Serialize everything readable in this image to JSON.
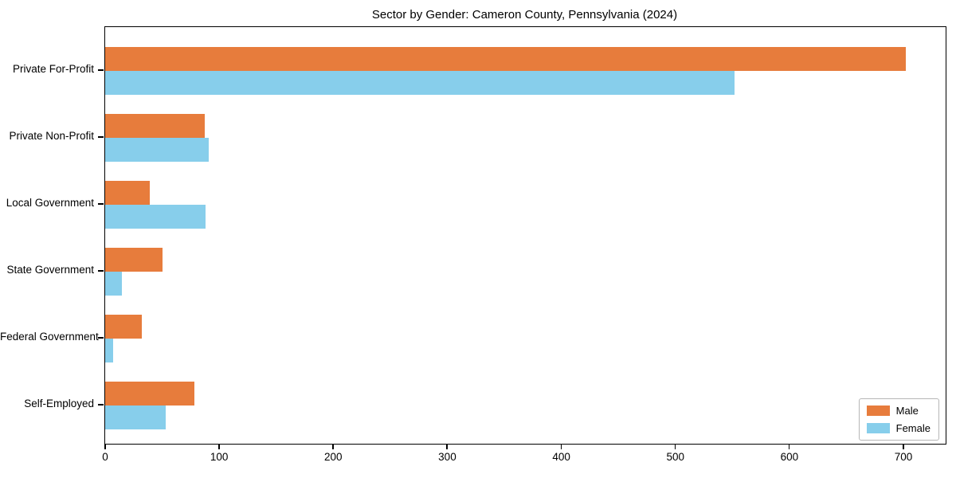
{
  "chart_data": {
    "type": "bar",
    "orientation": "horizontal",
    "title": "Sector by Gender: Cameron County, Pennsylvania (2024)",
    "categories": [
      "Private For-Profit",
      "Private Non-Profit",
      "Local Government",
      "State Government",
      "Federal Government",
      "Self-Employed"
    ],
    "series": [
      {
        "name": "Male",
        "color": "#e77c3c",
        "values": [
          702,
          87,
          39,
          50,
          32,
          78
        ]
      },
      {
        "name": "Female",
        "color": "#87ceeb",
        "values": [
          552,
          91,
          88,
          15,
          7,
          53
        ]
      }
    ],
    "xlabel": "",
    "ylabel": "",
    "x_ticks": [
      0,
      100,
      200,
      300,
      400,
      500,
      600,
      700
    ],
    "xlim": [
      0,
      737
    ],
    "grid": false,
    "legend_position": "lower right"
  }
}
